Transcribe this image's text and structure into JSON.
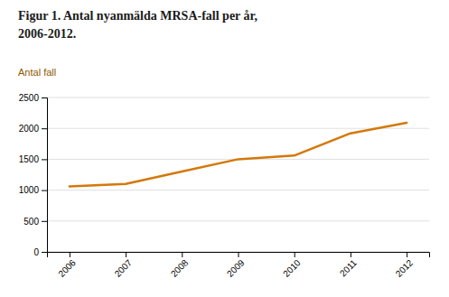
{
  "chart_data": {
    "type": "line",
    "title": "Figur 1. Antal nyanmälda MRSA-fall per år,",
    "subtitle": "2006-2012.",
    "ylabel": "Antal fall",
    "x": [
      2006,
      2007,
      2008,
      2009,
      2010,
      2011,
      2012
    ],
    "values": [
      1060,
      1100,
      1300,
      1500,
      1560,
      1920,
      2090
    ],
    "color": "#D4780A",
    "xlim": [
      2005.6,
      2012.4
    ],
    "xticks": [
      2006,
      2007,
      2008,
      2009,
      2010,
      2011,
      2012
    ],
    "ylim": [
      0,
      2500
    ],
    "yticks": [
      0,
      500,
      1000,
      1500,
      2000,
      2500
    ],
    "grid": "y"
  }
}
